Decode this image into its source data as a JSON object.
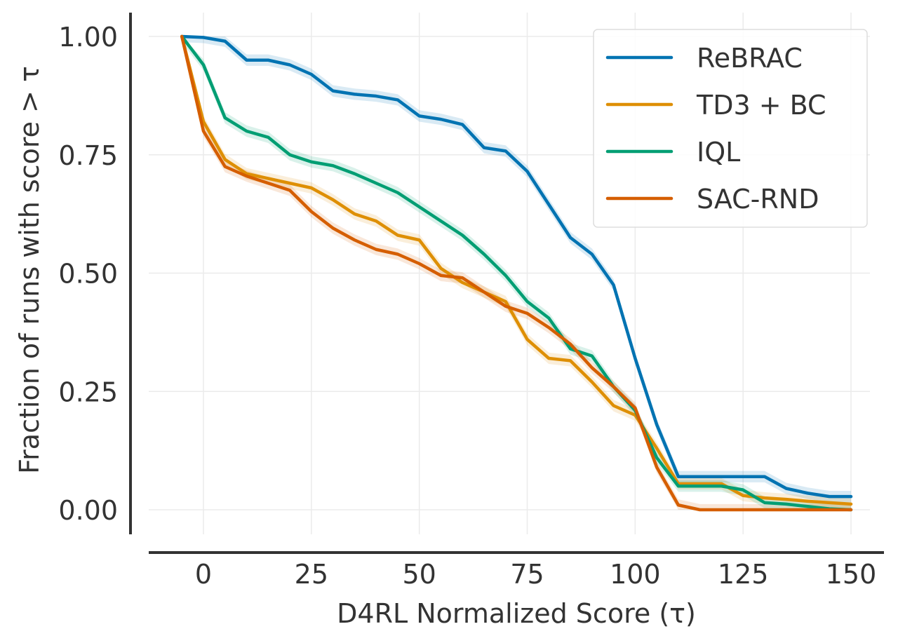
{
  "chart_data": {
    "type": "line",
    "title": "",
    "xlabel": "D4RL Normalized Score (τ)",
    "ylabel": "Fraction of runs with score  > τ",
    "xlim": [
      -12,
      155
    ],
    "ylim": [
      -0.05,
      1.05
    ],
    "xticks": [
      0,
      25,
      50,
      75,
      100,
      125,
      150
    ],
    "xtick_labels": [
      "0",
      "25",
      "50",
      "75",
      "100",
      "125",
      "150"
    ],
    "yticks": [
      0.0,
      0.25,
      0.5,
      0.75,
      1.0
    ],
    "ytick_labels": [
      "0.00",
      "0.25",
      "0.50",
      "0.75",
      "1.00"
    ],
    "grid": true,
    "legend_position": "top-right",
    "x": [
      -5,
      0,
      5,
      10,
      15,
      20,
      25,
      30,
      35,
      40,
      45,
      50,
      55,
      60,
      65,
      70,
      75,
      80,
      85,
      90,
      95,
      100,
      105,
      110,
      115,
      120,
      125,
      130,
      135,
      140,
      145,
      150
    ],
    "series": [
      {
        "name": "ReBRAC",
        "color": "#0173b2",
        "values": [
          1.0,
          0.998,
          0.99,
          0.95,
          0.95,
          0.94,
          0.92,
          0.885,
          0.878,
          0.874,
          0.866,
          0.832,
          0.825,
          0.814,
          0.765,
          0.758,
          0.715,
          0.645,
          0.575,
          0.54,
          0.475,
          0.32,
          0.18,
          0.07,
          0.07,
          0.07,
          0.07,
          0.07,
          0.045,
          0.035,
          0.028,
          0.028
        ]
      },
      {
        "name": "TD3 + BC",
        "color": "#de8f05",
        "values": [
          1.0,
          0.82,
          0.74,
          0.71,
          0.7,
          0.69,
          0.68,
          0.655,
          0.625,
          0.61,
          0.58,
          0.57,
          0.51,
          0.48,
          0.46,
          0.44,
          0.36,
          0.32,
          0.315,
          0.27,
          0.22,
          0.2,
          0.13,
          0.055,
          0.055,
          0.055,
          0.03,
          0.025,
          0.022,
          0.018,
          0.015,
          0.012
        ]
      },
      {
        "name": "IQL",
        "color": "#029e73",
        "values": [
          1.0,
          0.94,
          0.828,
          0.8,
          0.787,
          0.75,
          0.735,
          0.727,
          0.71,
          0.69,
          0.67,
          0.64,
          0.61,
          0.58,
          0.54,
          0.495,
          0.44,
          0.405,
          0.34,
          0.325,
          0.26,
          0.21,
          0.11,
          0.05,
          0.05,
          0.05,
          0.042,
          0.015,
          0.012,
          0.007,
          0.002,
          0.0
        ]
      },
      {
        "name": "SAC-RND",
        "color": "#d55e00",
        "values": [
          1.0,
          0.8,
          0.725,
          0.705,
          0.69,
          0.675,
          0.63,
          0.595,
          0.57,
          0.55,
          0.54,
          0.52,
          0.495,
          0.49,
          0.46,
          0.43,
          0.415,
          0.385,
          0.35,
          0.3,
          0.26,
          0.215,
          0.09,
          0.01,
          0.0,
          0.0,
          0.0,
          0.0,
          0.0,
          0.0,
          0.0,
          0.0
        ]
      }
    ]
  }
}
